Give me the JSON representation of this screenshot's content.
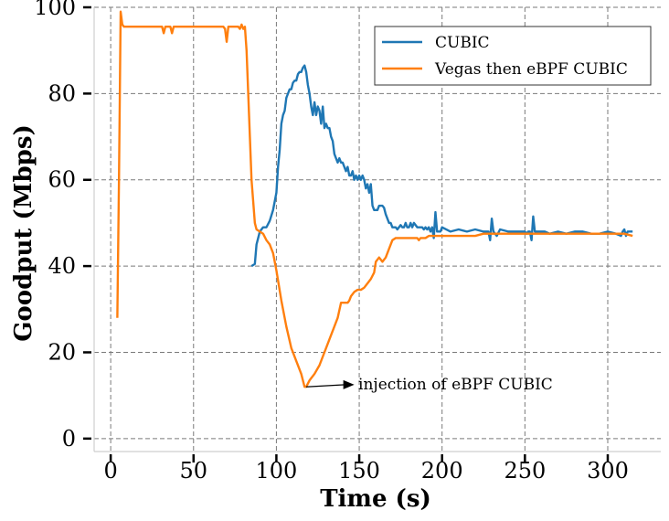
{
  "chart_data": {
    "type": "line",
    "title": "",
    "xlabel": "Time (s)",
    "ylabel": "Goodput (Mbps)",
    "xlim": [
      -10,
      332
    ],
    "ylim": [
      -3,
      100
    ],
    "xticks": [
      0,
      50,
      100,
      150,
      200,
      250,
      300
    ],
    "yticks": [
      0,
      20,
      40,
      60,
      80,
      100
    ],
    "grid": true,
    "legend_position": "top-right",
    "series": [
      {
        "name": "CUBIC",
        "color": "#1f77b4",
        "points": [
          [
            85,
            40
          ],
          [
            87,
            40.5
          ],
          [
            88,
            45
          ],
          [
            90,
            48
          ],
          [
            92,
            49
          ],
          [
            94,
            49
          ],
          [
            96,
            50.5
          ],
          [
            98,
            53
          ],
          [
            100,
            57
          ],
          [
            101,
            63
          ],
          [
            102,
            67
          ],
          [
            103,
            73
          ],
          [
            104,
            75
          ],
          [
            105,
            76
          ],
          [
            106,
            79
          ],
          [
            107,
            80
          ],
          [
            108,
            81
          ],
          [
            109,
            81
          ],
          [
            110,
            82.5
          ],
          [
            111,
            83
          ],
          [
            112,
            83
          ],
          [
            113,
            84.5
          ],
          [
            114,
            85
          ],
          [
            115,
            85
          ],
          [
            116,
            86
          ],
          [
            117,
            86.5
          ],
          [
            118,
            85
          ],
          [
            119,
            82
          ],
          [
            120,
            80
          ],
          [
            121,
            77
          ],
          [
            122,
            75
          ],
          [
            123,
            78
          ],
          [
            124,
            75
          ],
          [
            125,
            77
          ],
          [
            126,
            76
          ],
          [
            127,
            73
          ],
          [
            128,
            77
          ],
          [
            129,
            72
          ],
          [
            130,
            73
          ],
          [
            131,
            72
          ],
          [
            132,
            72
          ],
          [
            133,
            70
          ],
          [
            134,
            69
          ],
          [
            135,
            66
          ],
          [
            136,
            65
          ],
          [
            137,
            64
          ],
          [
            138,
            65
          ],
          [
            139,
            64
          ],
          [
            140,
            64
          ],
          [
            141,
            63
          ],
          [
            142,
            62
          ],
          [
            143,
            63
          ],
          [
            144,
            61
          ],
          [
            145,
            61
          ],
          [
            146,
            62
          ],
          [
            147,
            60
          ],
          [
            148,
            61
          ],
          [
            149,
            60
          ],
          [
            150,
            61
          ],
          [
            151,
            60
          ],
          [
            152,
            61
          ],
          [
            153,
            60
          ],
          [
            154,
            58
          ],
          [
            155,
            59
          ],
          [
            156,
            57
          ],
          [
            157,
            59
          ],
          [
            158,
            54
          ],
          [
            159,
            53
          ],
          [
            160,
            53
          ],
          [
            161,
            53
          ],
          [
            162,
            54
          ],
          [
            163,
            54
          ],
          [
            164,
            54
          ],
          [
            165,
            53.5
          ],
          [
            166,
            52
          ],
          [
            167,
            51
          ],
          [
            168,
            50
          ],
          [
            169,
            50
          ],
          [
            170,
            49
          ],
          [
            171,
            49
          ],
          [
            172,
            49
          ],
          [
            173,
            48.5
          ],
          [
            174,
            49
          ],
          [
            175,
            49.5
          ],
          [
            176,
            49
          ],
          [
            177,
            49
          ],
          [
            178,
            50
          ],
          [
            179,
            49
          ],
          [
            180,
            49
          ],
          [
            181,
            50
          ],
          [
            182,
            49
          ],
          [
            183,
            50
          ],
          [
            184,
            49.5
          ],
          [
            185,
            49
          ],
          [
            186,
            49
          ],
          [
            187,
            49
          ],
          [
            188,
            49
          ],
          [
            189,
            48.5
          ],
          [
            190,
            49
          ],
          [
            191,
            48.5
          ],
          [
            192,
            49
          ],
          [
            193,
            48
          ],
          [
            194,
            49
          ],
          [
            195,
            46.5
          ],
          [
            196,
            52.5
          ],
          [
            197,
            48
          ],
          [
            198,
            48
          ],
          [
            199,
            48
          ],
          [
            200,
            49
          ],
          [
            205,
            48
          ],
          [
            210,
            48.5
          ],
          [
            215,
            48
          ],
          [
            220,
            48.5
          ],
          [
            225,
            48
          ],
          [
            228,
            48
          ],
          [
            229,
            46
          ],
          [
            230,
            51
          ],
          [
            231,
            48
          ],
          [
            233,
            47
          ],
          [
            235,
            48.5
          ],
          [
            240,
            48
          ],
          [
            245,
            48
          ],
          [
            250,
            48
          ],
          [
            251,
            47.5
          ],
          [
            252,
            48
          ],
          [
            253,
            48
          ],
          [
            254,
            46
          ],
          [
            255,
            51.5
          ],
          [
            256,
            48
          ],
          [
            258,
            48
          ],
          [
            260,
            48
          ],
          [
            262,
            48
          ],
          [
            265,
            47.5
          ],
          [
            270,
            48
          ],
          [
            275,
            47.5
          ],
          [
            280,
            48
          ],
          [
            285,
            48
          ],
          [
            290,
            47.5
          ],
          [
            295,
            47.5
          ],
          [
            300,
            48
          ],
          [
            305,
            47.5
          ],
          [
            308,
            47
          ],
          [
            309,
            48
          ],
          [
            310,
            48.5
          ],
          [
            311,
            47
          ],
          [
            312,
            48
          ],
          [
            315,
            48
          ]
        ]
      },
      {
        "name": "Vegas then eBPF CUBIC",
        "color": "#ff7f0e",
        "points": [
          [
            4,
            28
          ],
          [
            5,
            60
          ],
          [
            6,
            99
          ],
          [
            7,
            96
          ],
          [
            8,
            95.5
          ],
          [
            15,
            95.5
          ],
          [
            20,
            95.5
          ],
          [
            28,
            95.5
          ],
          [
            29,
            95.5
          ],
          [
            30,
            95.5
          ],
          [
            31,
            95.5
          ],
          [
            32,
            94
          ],
          [
            33,
            95.5
          ],
          [
            35,
            95.5
          ],
          [
            36,
            95.5
          ],
          [
            37,
            94
          ],
          [
            38,
            95.5
          ],
          [
            45,
            95.5
          ],
          [
            50,
            95.5
          ],
          [
            55,
            95.5
          ],
          [
            60,
            95.5
          ],
          [
            65,
            95.5
          ],
          [
            68,
            95.5
          ],
          [
            69,
            95
          ],
          [
            70,
            92
          ],
          [
            71,
            95.5
          ],
          [
            75,
            95.5
          ],
          [
            77,
            95.5
          ],
          [
            78,
            95
          ],
          [
            79,
            96
          ],
          [
            80,
            95
          ],
          [
            81,
            95.5
          ],
          [
            82,
            90
          ],
          [
            83,
            80
          ],
          [
            84,
            70
          ],
          [
            85,
            60
          ],
          [
            86,
            55
          ],
          [
            87,
            50
          ],
          [
            88,
            48.5
          ],
          [
            90,
            48
          ],
          [
            92,
            47.5
          ],
          [
            94,
            46
          ],
          [
            96,
            45
          ],
          [
            98,
            43
          ],
          [
            100,
            39
          ],
          [
            103,
            32
          ],
          [
            106,
            26
          ],
          [
            109,
            21
          ],
          [
            112,
            18
          ],
          [
            115,
            15
          ],
          [
            117,
            12
          ],
          [
            118,
            12
          ],
          [
            120,
            13.5
          ],
          [
            123,
            15
          ],
          [
            126,
            17
          ],
          [
            129,
            20
          ],
          [
            132,
            23
          ],
          [
            135,
            26
          ],
          [
            137,
            28
          ],
          [
            139,
            31.5
          ],
          [
            141,
            31.5
          ],
          [
            143,
            31.5
          ],
          [
            144,
            32
          ],
          [
            145,
            33
          ],
          [
            147,
            34
          ],
          [
            149,
            34.5
          ],
          [
            151,
            34.5
          ],
          [
            153,
            35
          ],
          [
            155,
            36
          ],
          [
            157,
            37
          ],
          [
            159,
            38.5
          ],
          [
            160,
            41
          ],
          [
            162,
            42
          ],
          [
            164,
            41
          ],
          [
            166,
            42
          ],
          [
            168,
            44
          ],
          [
            170,
            46
          ],
          [
            172,
            46.5
          ],
          [
            175,
            46.5
          ],
          [
            180,
            46.5
          ],
          [
            185,
            46.5
          ],
          [
            186,
            46
          ],
          [
            187,
            46.5
          ],
          [
            188,
            46.5
          ],
          [
            190,
            46.5
          ],
          [
            192,
            47
          ],
          [
            195,
            47
          ],
          [
            200,
            47
          ],
          [
            205,
            47
          ],
          [
            210,
            47
          ],
          [
            215,
            47
          ],
          [
            220,
            47
          ],
          [
            225,
            47.5
          ],
          [
            230,
            47.5
          ],
          [
            235,
            47.5
          ],
          [
            240,
            47.5
          ],
          [
            245,
            47.5
          ],
          [
            250,
            47.5
          ],
          [
            255,
            47.5
          ],
          [
            260,
            47.5
          ],
          [
            265,
            47.5
          ],
          [
            270,
            47.5
          ],
          [
            275,
            47.5
          ],
          [
            280,
            47.5
          ],
          [
            285,
            47.5
          ],
          [
            290,
            47.5
          ],
          [
            295,
            47.5
          ],
          [
            300,
            47.5
          ],
          [
            305,
            47.5
          ],
          [
            310,
            47.5
          ],
          [
            315,
            47
          ]
        ]
      }
    ],
    "annotations": [
      {
        "text": "injection of eBPF CUBIC",
        "arrow_from": [
          118,
          12
        ],
        "arrow_to": [
          147,
          12.5
        ],
        "text_at": [
          150,
          12.5
        ]
      }
    ]
  }
}
